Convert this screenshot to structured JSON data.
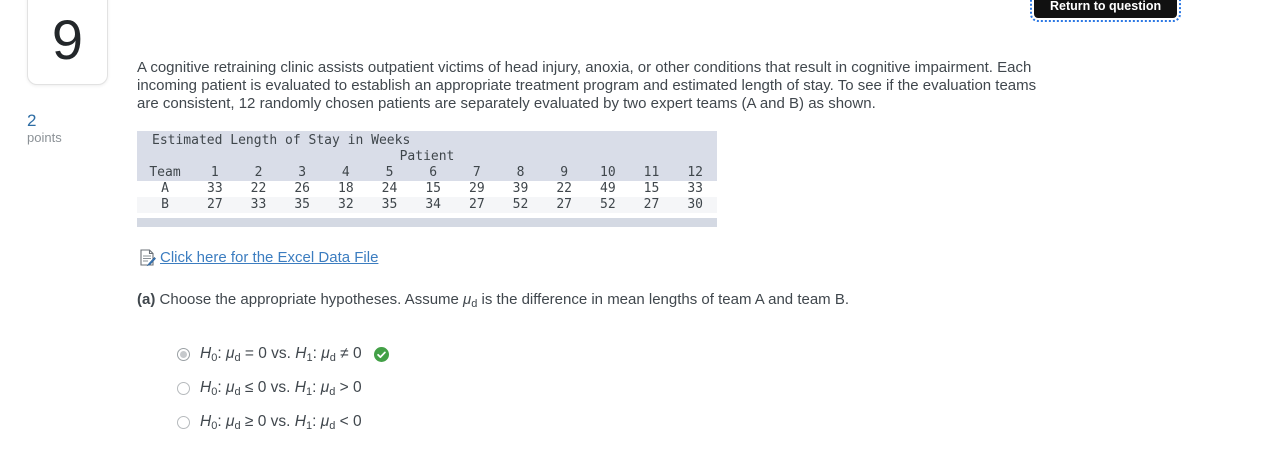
{
  "question": {
    "number": "9",
    "points_value": "2",
    "points_label": "points"
  },
  "header": {
    "return_button_label": "Return to question"
  },
  "intro_text": "A cognitive retraining clinic assists outpatient victims of head injury, anoxia, or other conditions that result in cognitive impairment. Each incoming patient is evaluated to establish an appropriate treatment program and estimated length of stay. To see if the evaluation teams are consistent, 12 randomly chosen patients are separately evaluated by two expert teams (A and B) as shown.",
  "table": {
    "title": "Estimated Length of Stay in Weeks",
    "group_header": "Patient",
    "team_label": "Team",
    "patients": [
      "1",
      "2",
      "3",
      "4",
      "5",
      "6",
      "7",
      "8",
      "9",
      "10",
      "11",
      "12"
    ],
    "rows": [
      {
        "label": "A",
        "values": [
          33,
          22,
          26,
          18,
          24,
          15,
          29,
          39,
          22,
          49,
          15,
          33
        ]
      },
      {
        "label": "B",
        "values": [
          27,
          33,
          35,
          32,
          35,
          34,
          27,
          52,
          27,
          52,
          27,
          30
        ]
      }
    ]
  },
  "excel_link": {
    "label": "Click here for the Excel Data File",
    "icon": "excel-file-icon"
  },
  "part_a": {
    "prefix": "(a)",
    "text": "Choose the appropriate hypotheses. Assume μ_d is the difference in mean lengths of team A and team B."
  },
  "options": [
    {
      "text": "H_0: μ_d = 0 vs. H_1: μ_d ≠ 0",
      "selected": true,
      "correct": true
    },
    {
      "text": "H_0: μ_d ≤ 0 vs. H_1: μ_d > 0",
      "selected": false,
      "correct": false
    },
    {
      "text": "H_0: μ_d ≥ 0 vs. H_1: μ_d < 0",
      "selected": false,
      "correct": false
    }
  ],
  "colors": {
    "link_blue": "#3c7dc0",
    "points_blue": "#2e6da4",
    "correct_green": "#43a047",
    "table_header_bg": "#d9dde8",
    "scrollbar_bg": "#d4d9e3",
    "focus_outline_blue": "#2b78e4",
    "button_bg": "#111111"
  }
}
